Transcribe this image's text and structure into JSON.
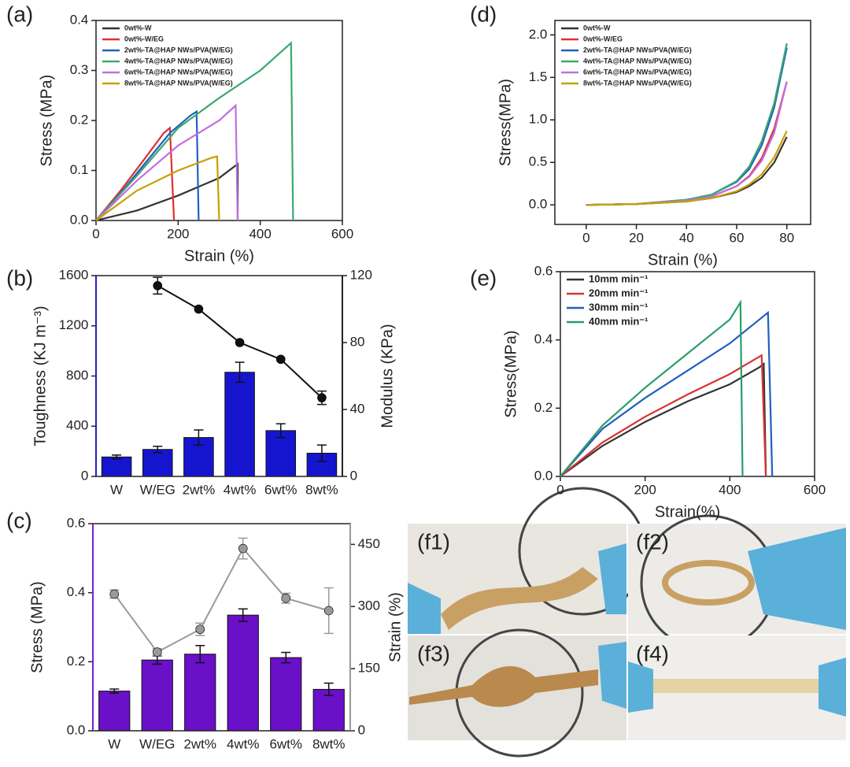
{
  "chart_data": [
    {
      "type": "line",
      "panel_label": "(a)",
      "xlabel": "Strain (%)",
      "ylabel": "Stress (MPa)",
      "legend": "upper left",
      "xlim": [
        0,
        600
      ],
      "xticks": [
        0,
        200,
        400,
        600
      ],
      "ylim": [
        0,
        0.4
      ],
      "yticks": [
        {
          "value": 0,
          "label": "0.0"
        },
        0.1,
        0.2,
        0.3,
        0.4
      ],
      "series": [
        {
          "name": "0wt%-W",
          "color": "#333333",
          "x": [
            0,
            100,
            200,
            300,
            345,
            345
          ],
          "values": [
            0,
            0.02,
            0.05,
            0.085,
            0.113,
            0
          ]
        },
        {
          "name": "0wt%-W/EG",
          "color": "#e03030",
          "x": [
            0,
            60,
            120,
            165,
            180,
            190
          ],
          "values": [
            0,
            0.06,
            0.125,
            0.175,
            0.185,
            0
          ]
        },
        {
          "name": "2wt%-TA@HAP NWs/PVA(W/EG)",
          "color": "#2060c0",
          "x": [
            0,
            60,
            120,
            180,
            230,
            245,
            250
          ],
          "values": [
            0,
            0.055,
            0.115,
            0.175,
            0.21,
            0.218,
            0
          ]
        },
        {
          "name": "4wt%-TA@HAP NWs/PVA(W/EG)",
          "color": "#3aa870",
          "x": [
            0,
            100,
            200,
            300,
            400,
            475,
            480
          ],
          "values": [
            0,
            0.09,
            0.185,
            0.245,
            0.3,
            0.355,
            0
          ]
        },
        {
          "name": "6wt%-TA@HAP NWs/PVA(W/EG)",
          "color": "#c070e0",
          "x": [
            0,
            100,
            200,
            300,
            340,
            345
          ],
          "values": [
            0,
            0.08,
            0.15,
            0.2,
            0.23,
            0
          ]
        },
        {
          "name": "8wt%-TA@HAP NWs/PVA(W/EG)",
          "color": "#c8a000",
          "x": [
            0,
            100,
            200,
            280,
            295,
            300
          ],
          "values": [
            0,
            0.06,
            0.1,
            0.125,
            0.128,
            0
          ]
        }
      ]
    },
    {
      "type": "combo",
      "panel_label": "(b)",
      "ylabel": "Toughness (KJ m⁻³)",
      "ylabel_color": "#2020c8",
      "y2label": "Modulus (KPa)",
      "y2label_color": "#222222",
      "categories": [
        "W",
        "W/EG",
        "2wt%",
        "4wt%",
        "6wt%",
        "8wt%"
      ],
      "ylim": [
        0,
        1600
      ],
      "yticks": [
        0,
        400,
        800,
        1200,
        1600
      ],
      "y2lim": [
        0,
        120
      ],
      "y2ticks": [
        0,
        40,
        80,
        120
      ],
      "bars": {
        "color": "#1515d0",
        "values": [
          155,
          215,
          310,
          830,
          365,
          185
        ],
        "errors": [
          15,
          25,
          60,
          80,
          55,
          65
        ]
      },
      "line": {
        "color": "#111111",
        "values": [
          null,
          114,
          100,
          80,
          70,
          47
        ],
        "errors": [
          null,
          5,
          null,
          null,
          null,
          4
        ]
      }
    },
    {
      "type": "combo",
      "panel_label": "(c)",
      "ylabel": "Stress (MPa)",
      "ylabel_color": "#7a1fd0",
      "y2label": "Strain (%)",
      "y2label_color": "#999999",
      "categories": [
        "W",
        "W/EG",
        "2wt%",
        "4wt%",
        "6wt%",
        "8wt%"
      ],
      "ylim": [
        0,
        0.6
      ],
      "yticks": [
        {
          "value": 0,
          "label": "0.0"
        },
        0.2,
        0.4,
        0.6
      ],
      "y2lim": [
        0,
        500
      ],
      "y2ticks": [
        0,
        150,
        300,
        450
      ],
      "bars": {
        "color": "#6a10c8",
        "values": [
          0.115,
          0.205,
          0.222,
          0.335,
          0.212,
          0.12
        ],
        "errors": [
          0.006,
          0.012,
          0.025,
          0.018,
          0.015,
          0.018
        ]
      },
      "line": {
        "color": "#9a9a9a",
        "values": [
          330,
          190,
          245,
          440,
          320,
          290
        ],
        "errors": [
          10,
          8,
          15,
          25,
          12,
          55
        ]
      }
    },
    {
      "type": "line",
      "panel_label": "(d)",
      "xlabel": "Strain (%)",
      "ylabel": "Stress(MPa)",
      "legend": "upper left",
      "xlim": [
        -12.5,
        89.5
      ],
      "xticks": [
        0,
        20,
        40,
        60,
        80
      ],
      "ylim": [
        -0.23,
        2.17
      ],
      "yticks": [
        {
          "value": 0,
          "label": "0.0"
        },
        0.5,
        {
          "value": 1,
          "label": "1.0"
        },
        1.5,
        {
          "value": 2,
          "label": "2.0"
        }
      ],
      "series": [
        {
          "name": "0wt%-W",
          "color": "#333333",
          "x": [
            0,
            20,
            40,
            50,
            60,
            65,
            70,
            75,
            80
          ],
          "values": [
            0,
            0.01,
            0.04,
            0.08,
            0.15,
            0.22,
            0.32,
            0.5,
            0.8
          ]
        },
        {
          "name": "0wt%-W/EG",
          "color": "#e03030",
          "x": [
            0,
            20,
            40,
            50,
            60,
            65,
            70,
            75,
            80
          ],
          "values": [
            0,
            0.01,
            0.05,
            0.1,
            0.22,
            0.34,
            0.55,
            0.9,
            1.45
          ]
        },
        {
          "name": "2wt%-TA@HAP NWs/PVA(W/EG)",
          "color": "#2060c0",
          "x": [
            0,
            20,
            40,
            50,
            60,
            65,
            70,
            75,
            80
          ],
          "values": [
            0,
            0.01,
            0.06,
            0.12,
            0.27,
            0.42,
            0.7,
            1.15,
            1.85
          ]
        },
        {
          "name": "4wt%-TA@HAP NWs/PVA(W/EG)",
          "color": "#3aa870",
          "x": [
            0,
            20,
            40,
            50,
            60,
            65,
            70,
            75,
            80
          ],
          "values": [
            0,
            0.01,
            0.06,
            0.12,
            0.28,
            0.45,
            0.75,
            1.2,
            1.9
          ]
        },
        {
          "name": "6wt%-TA@HAP NWs/PVA(W/EG)",
          "color": "#c070e0",
          "x": [
            0,
            20,
            40,
            50,
            60,
            65,
            70,
            75,
            80
          ],
          "values": [
            0,
            0.01,
            0.05,
            0.1,
            0.22,
            0.33,
            0.52,
            0.85,
            1.45
          ]
        },
        {
          "name": "8wt%-TA@HAP NWs/PVA(W/EG)",
          "color": "#c8a000",
          "x": [
            0,
            20,
            40,
            50,
            60,
            65,
            70,
            75,
            80
          ],
          "values": [
            0,
            0.01,
            0.04,
            0.08,
            0.16,
            0.24,
            0.36,
            0.56,
            0.87
          ]
        }
      ]
    },
    {
      "type": "line",
      "panel_label": "(e)",
      "xlabel": "Strain(%)",
      "ylabel": "Stress(MPa)",
      "legend": "upper left",
      "xlim": [
        0,
        600
      ],
      "xticks": [
        0,
        200,
        400,
        600
      ],
      "ylim": [
        0,
        0.6
      ],
      "yticks": [
        {
          "value": 0,
          "label": "0.0"
        },
        0.2,
        0.4,
        0.6
      ],
      "series": [
        {
          "name": "10mm min⁻¹",
          "color": "#333333",
          "x": [
            0,
            50,
            100,
            200,
            300,
            400,
            470,
            480,
            485
          ],
          "values": [
            0,
            0.045,
            0.09,
            0.16,
            0.22,
            0.27,
            0.32,
            0.33,
            0
          ]
        },
        {
          "name": "20mm min⁻¹",
          "color": "#d83333",
          "x": [
            0,
            100,
            200,
            300,
            400,
            475,
            485
          ],
          "values": [
            0,
            0.1,
            0.175,
            0.24,
            0.3,
            0.355,
            0
          ]
        },
        {
          "name": "30mm min⁻¹",
          "color": "#1f5fbf",
          "x": [
            0,
            100,
            200,
            300,
            400,
            480,
            490,
            500
          ],
          "values": [
            0,
            0.14,
            0.23,
            0.31,
            0.39,
            0.47,
            0.48,
            0
          ]
        },
        {
          "name": "40mm min⁻¹",
          "color": "#2a9d6a",
          "x": [
            0,
            100,
            200,
            300,
            400,
            420,
            425,
            430
          ],
          "values": [
            0,
            0.15,
            0.26,
            0.36,
            0.46,
            0.5,
            0.51,
            0
          ]
        }
      ]
    }
  ],
  "photos": {
    "labels": [
      "(f1)",
      "(f2)",
      "(f3)",
      "(f4)"
    ]
  }
}
